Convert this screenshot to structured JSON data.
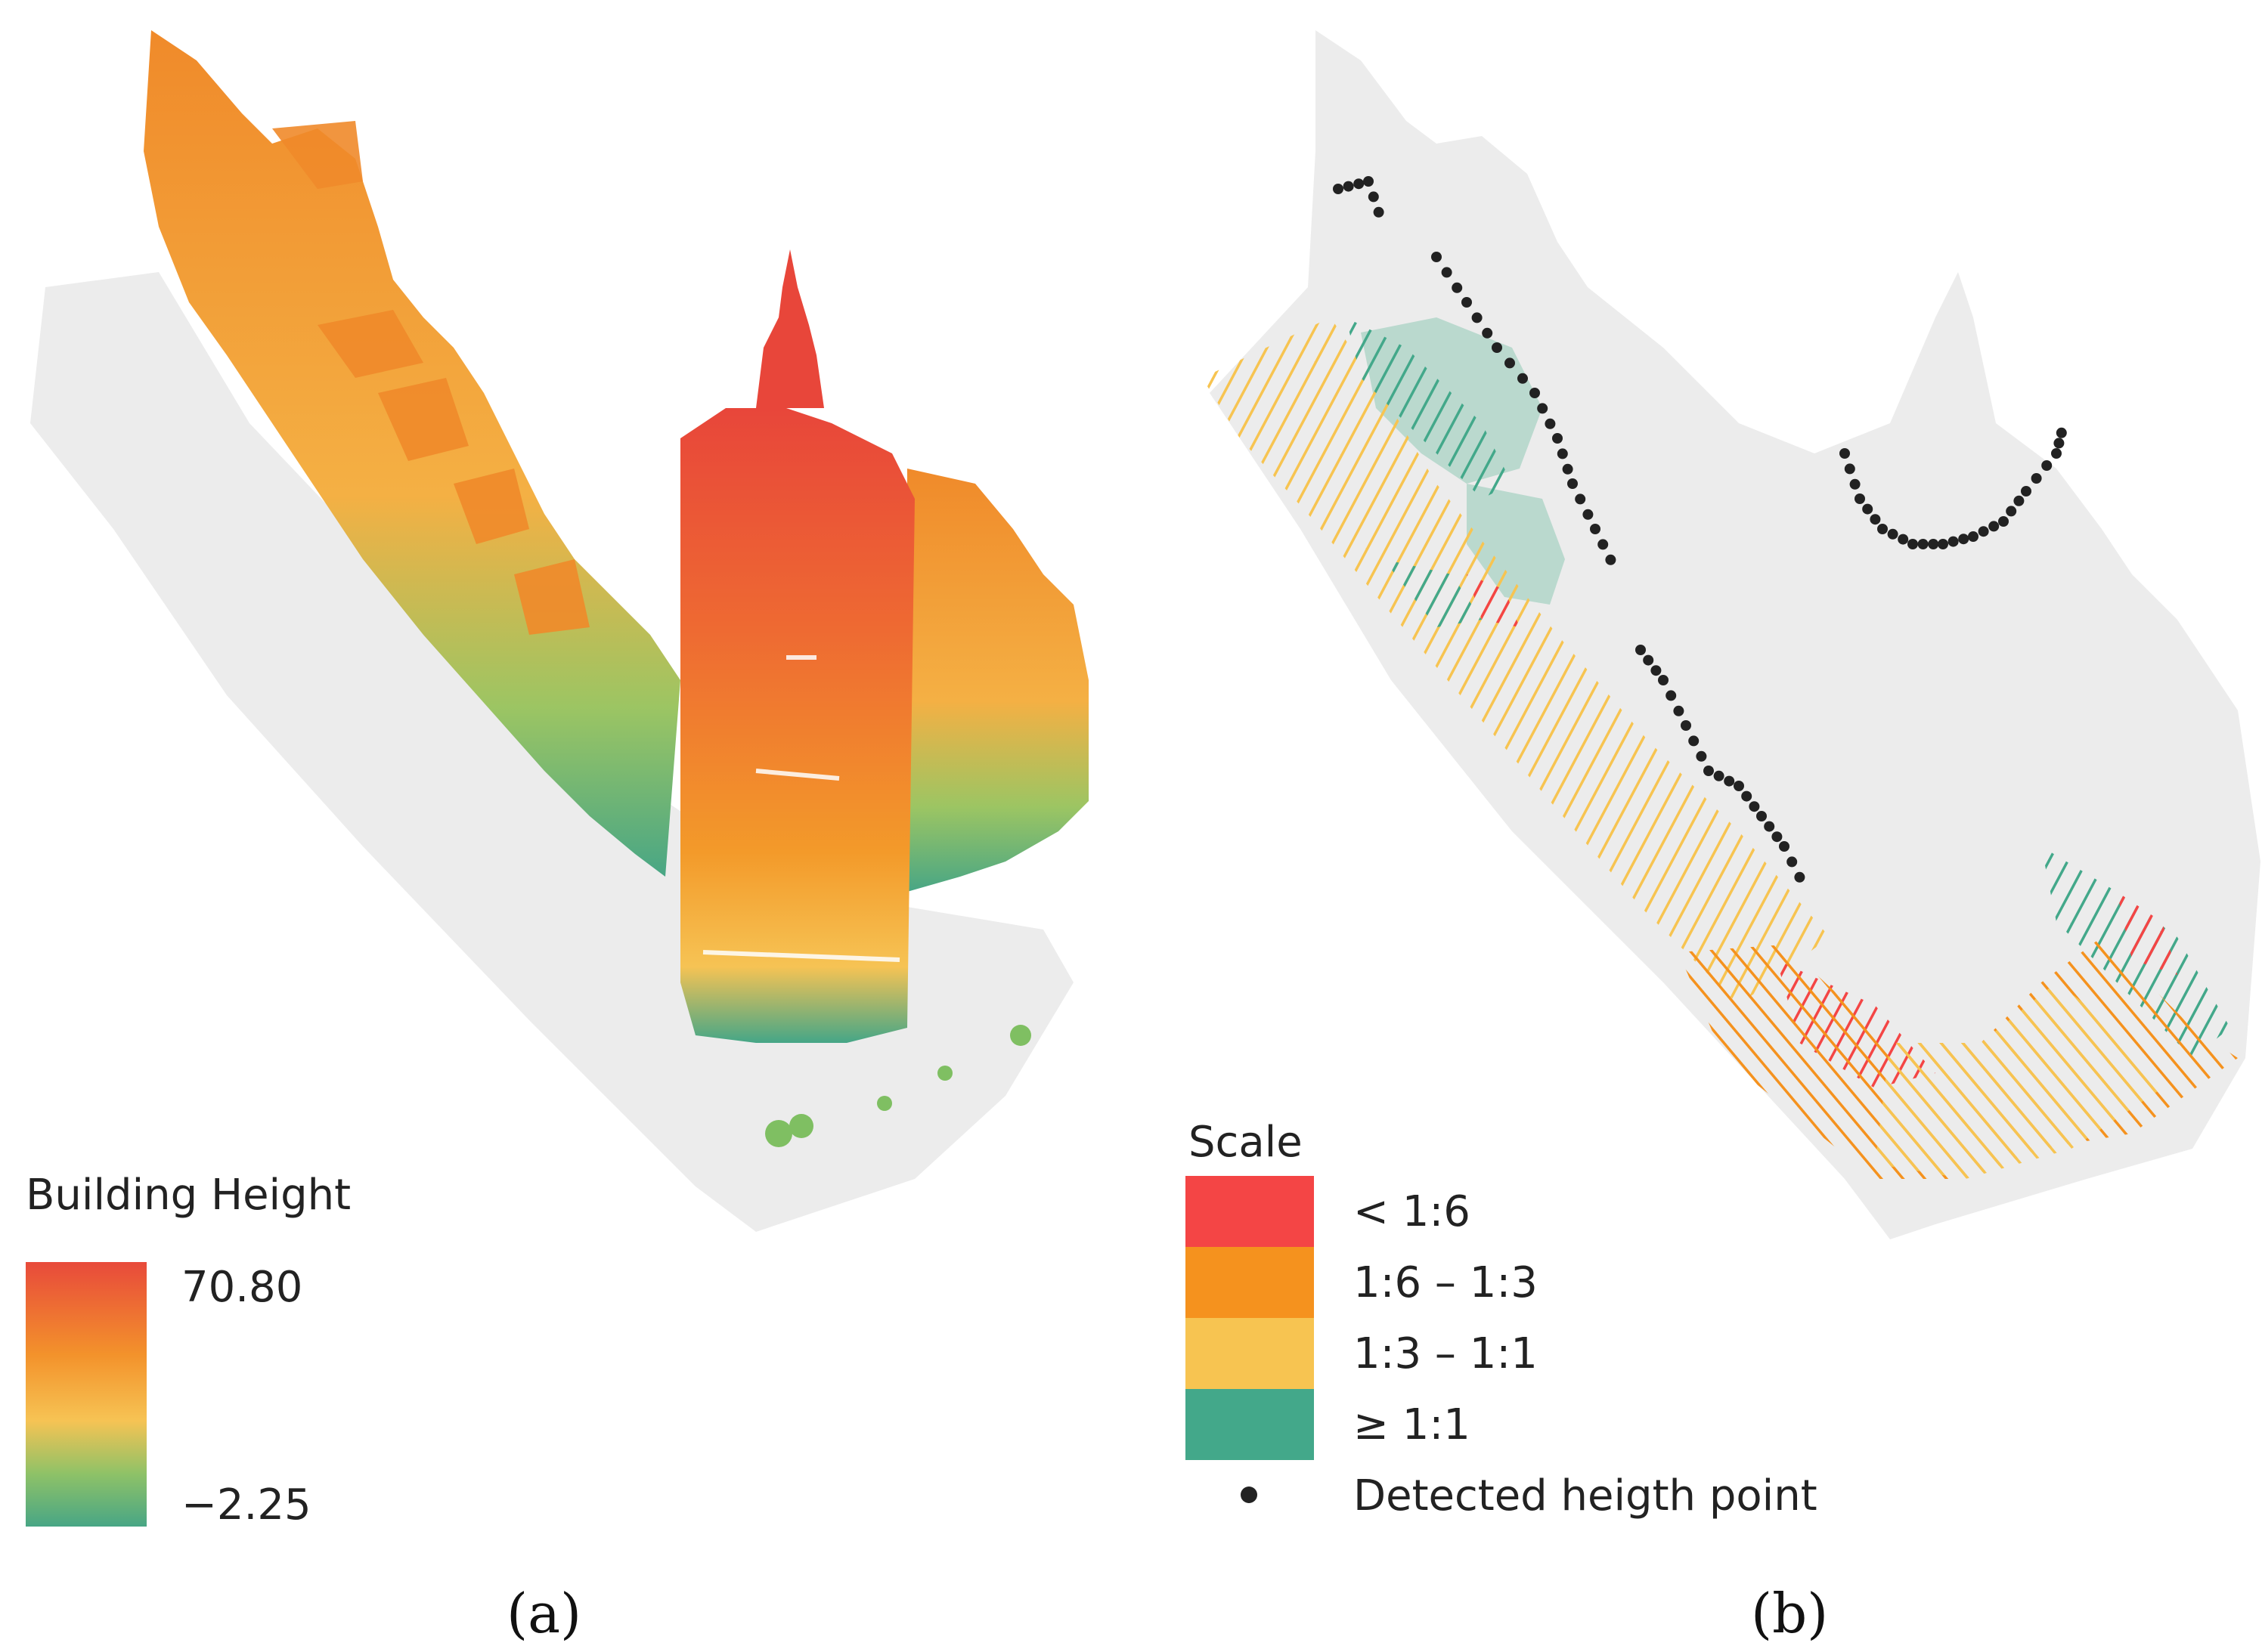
{
  "panel_a": {
    "label": "(a)",
    "legend": {
      "title": "Building Height",
      "max_label": "70.80",
      "min_label": "−2.25",
      "gradient_colors": [
        "#e84a3b",
        "#f3922b",
        "#f6c354",
        "#7fbf62",
        "#48a685"
      ]
    }
  },
  "panel_b": {
    "label": "(b)",
    "legend": {
      "title": "Scale",
      "entries": [
        {
          "label": "< 1:6",
          "color": "#f44545"
        },
        {
          "label": "1:6 – 1:3",
          "color": "#f5921e"
        },
        {
          "label": "1:3 – 1:1",
          "color": "#f7c451"
        },
        {
          "label": "≥ 1:1",
          "color": "#43a88a"
        }
      ],
      "point_label": "Detected heigth point",
      "point_color": "#222222"
    }
  },
  "colors": {
    "footprint": "#ececec",
    "tower_top": "#e8463a",
    "tower_mid": "#f08a2a",
    "tower_base": "#45a687"
  }
}
